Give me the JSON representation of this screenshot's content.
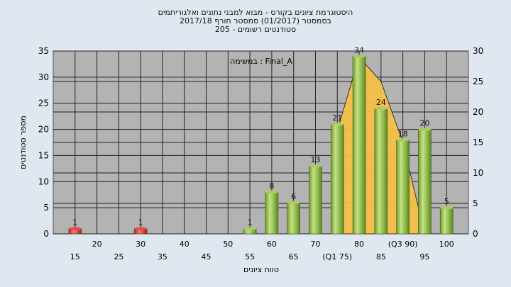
{
  "chart_data": {
    "type": "bar",
    "title_lines": [
      "היסטוגרמת ציונים בקורס - מבוא למבני נתונים ואלגוריתמים",
      "בסמסטר  (01/2017)  סמסטר חורף 2017/18",
      "סטודנטים רשומים - 205"
    ],
    "annotation": "במשימה : Final_A",
    "xlabel": "טווח ציונים",
    "ylabel": "מספר סטודנטים",
    "ylim": [
      0,
      35
    ],
    "y_ticks": [
      0,
      5,
      10,
      15,
      20,
      25,
      30,
      35
    ],
    "y2lim": [
      0,
      30
    ],
    "y2_ticks": [
      0,
      5,
      10,
      15,
      20,
      25,
      30
    ],
    "x_tick_labels": [
      {
        "value": 15,
        "text": "15"
      },
      {
        "value": 20,
        "text": "20"
      },
      {
        "value": 25,
        "text": "25"
      },
      {
        "value": 30,
        "text": "30"
      },
      {
        "value": 35,
        "text": "35"
      },
      {
        "value": 40,
        "text": "40"
      },
      {
        "value": 45,
        "text": "45"
      },
      {
        "value": 50,
        "text": "50"
      },
      {
        "value": 55,
        "text": "55"
      },
      {
        "value": 60,
        "text": "60"
      },
      {
        "value": 65,
        "text": "65"
      },
      {
        "value": 70,
        "text": "70"
      },
      {
        "value": 75,
        "text": "(Q1 75)"
      },
      {
        "value": 80,
        "text": "80"
      },
      {
        "value": 85,
        "text": "85"
      },
      {
        "value": 90,
        "text": "(Q3 90)"
      },
      {
        "value": 95,
        "text": "95"
      },
      {
        "value": 100,
        "text": "100"
      }
    ],
    "bars": [
      {
        "x": 15,
        "value": 1,
        "color": "red"
      },
      {
        "x": 30,
        "value": 1,
        "color": "red"
      },
      {
        "x": 55,
        "value": 1,
        "color": "green"
      },
      {
        "x": 60,
        "value": 8,
        "color": "green"
      },
      {
        "x": 65,
        "value": 6,
        "color": "green"
      },
      {
        "x": 70,
        "value": 13,
        "color": "green"
      },
      {
        "x": 75,
        "value": 21,
        "color": "green"
      },
      {
        "x": 80,
        "value": 34,
        "color": "green"
      },
      {
        "x": 85,
        "value": 24,
        "color": "green"
      },
      {
        "x": 90,
        "value": 18,
        "color": "green"
      },
      {
        "x": 95,
        "value": 20,
        "color": "green"
      },
      {
        "x": 100,
        "value": 5,
        "color": "green"
      }
    ],
    "iqr_area": {
      "x": [
        75,
        80,
        85,
        90,
        95
      ],
      "y": [
        17,
        29,
        25,
        15,
        0
      ],
      "color": "#f5c04a"
    },
    "grid": true,
    "colors": {
      "plot_bg": "#b3b3b3",
      "page_bg": "#dfe8f1",
      "green": "#8cb84a",
      "red": "#d93a3a"
    }
  }
}
